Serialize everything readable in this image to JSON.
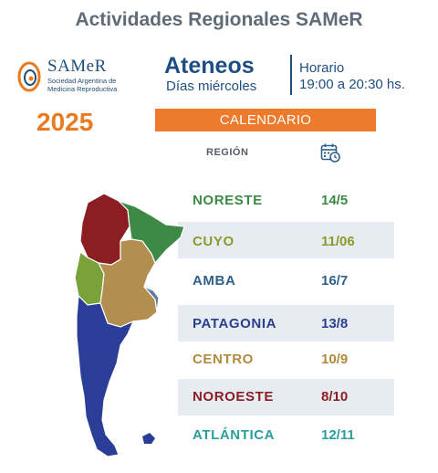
{
  "header": {
    "title": "Actividades Regionales SAMeR"
  },
  "logo": {
    "name": "SAMeR",
    "subtitle_line1": "Sociedad Argentina de",
    "subtitle_line2": "Medicina Reproductiva"
  },
  "year": "2025",
  "event": {
    "name": "Ateneos",
    "day": "Días miércoles",
    "schedule_label": "Horario",
    "schedule_time": "19:00 a 20:30 hs."
  },
  "calendar_label": "CALENDARIO",
  "region_header": "REGIÓN",
  "calendar_icon": "calendar-clock-icon",
  "regions": [
    {
      "name": "NORESTE",
      "date": "14/5",
      "color": "#3c8a45"
    },
    {
      "name": "CUYO",
      "date": "11/06",
      "color": "#8a9a2b"
    },
    {
      "name": "AMBA",
      "date": "16/7",
      "color": "#2f5f8a"
    },
    {
      "name": "PATAGONIA",
      "date": "13/8",
      "color": "#2b3f8f"
    },
    {
      "name": "CENTRO",
      "date": "10/9",
      "color": "#b08a3e"
    },
    {
      "name": "NOROESTE",
      "date": "8/10",
      "color": "#8b1e22"
    },
    {
      "name": "ATLÁNTICA",
      "date": "12/11",
      "color": "#2a9d9d"
    }
  ],
  "map_colors": {
    "noroeste": "#8b1e22",
    "noreste": "#3c8a45",
    "cuyo": "#7aa23a",
    "centro": "#b38f4f",
    "amba": "#5d7e9c",
    "patagonia": "#2a3d97"
  }
}
